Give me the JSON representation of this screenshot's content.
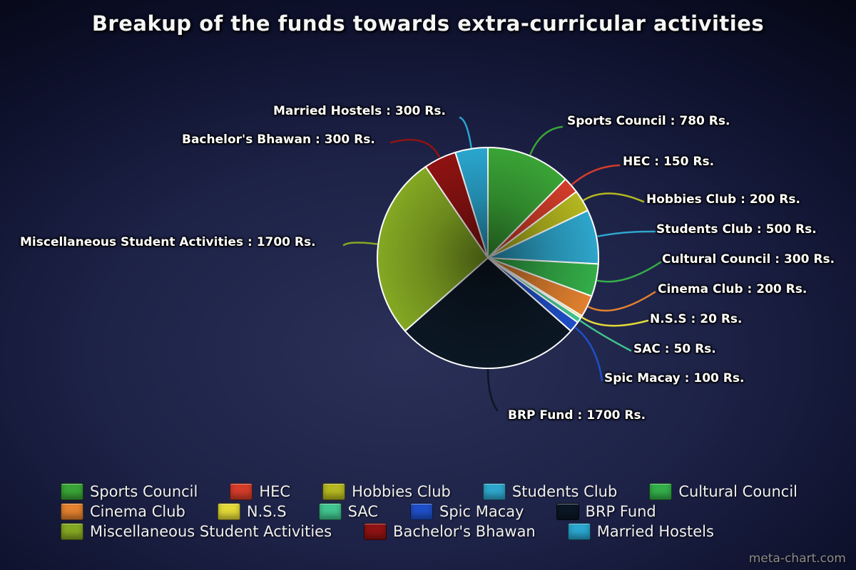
{
  "chart_data": {
    "type": "pie",
    "title": "Breakup of the funds towards extra-curricular activities",
    "unit": "Rs.",
    "legend_position": "bottom",
    "categories": [
      "Sports Council",
      "HEC",
      "Hobbies Club",
      "Students Club",
      "Cultural Council",
      "Cinema Club",
      "N.S.S",
      "SAC",
      "Spic Macay",
      "BRP Fund",
      "Miscellaneous Student Activities",
      "Bachelor's Bhawan",
      "Married Hostels"
    ],
    "values": [
      780,
      150,
      200,
      500,
      300,
      200,
      20,
      50,
      100,
      1700,
      1700,
      300,
      300
    ],
    "total": 6300,
    "colors": [
      "#3aa436",
      "#d43d2a",
      "#b5b81f",
      "#2ea6cc",
      "#34ae49",
      "#e2812f",
      "#e3d937",
      "#41c48e",
      "#1f4fc8",
      "#0b1724",
      "#84a823",
      "#8f1312",
      "#2aa6cf"
    ],
    "callout_labels": [
      "Sports Council : 780 Rs.",
      "HEC : 150 Rs.",
      "Hobbies Club : 200 Rs.",
      "Students Club : 500 Rs.",
      "Cultural Council : 300 Rs.",
      "Cinema Club : 200 Rs.",
      "N.S.S : 20 Rs.",
      "SAC : 50 Rs.",
      "Spic Macay : 100 Rs.",
      "BRP Fund : 1700 Rs.",
      "Miscellaneous Student Activities : 1700 Rs.",
      "Bachelor's Bhawan : 300 Rs.",
      "Married Hostels : 300 Rs."
    ]
  },
  "watermark": "meta-chart.com"
}
